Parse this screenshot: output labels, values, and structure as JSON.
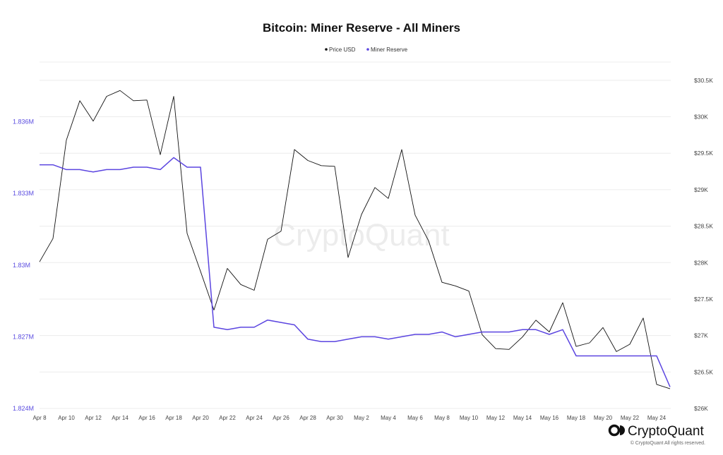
{
  "chart_data": {
    "type": "line",
    "title": "Bitcoin: Miner Reserve - All Miners",
    "legend": [
      "Price USD",
      "Miner Reserve"
    ],
    "x": [
      "Apr 8",
      "Apr 9",
      "Apr 10",
      "Apr 11",
      "Apr 12",
      "Apr 13",
      "Apr 14",
      "Apr 15",
      "Apr 16",
      "Apr 17",
      "Apr 18",
      "Apr 19",
      "Apr 20",
      "Apr 21",
      "Apr 22",
      "Apr 23",
      "Apr 24",
      "Apr 25",
      "Apr 26",
      "Apr 27",
      "Apr 28",
      "Apr 29",
      "Apr 30",
      "May 1",
      "May 2",
      "May 3",
      "May 4",
      "May 5",
      "May 6",
      "May 7",
      "May 8",
      "May 9",
      "May 10",
      "May 11",
      "May 12",
      "May 13",
      "May 14",
      "May 15",
      "May 16",
      "May 17",
      "May 18",
      "May 19",
      "May 20",
      "May 21",
      "May 22",
      "May 23",
      "May 24",
      "May 25"
    ],
    "x_tick_labels": [
      "Apr 8",
      "Apr 10",
      "Apr 12",
      "Apr 14",
      "Apr 16",
      "Apr 18",
      "Apr 20",
      "Apr 22",
      "Apr 24",
      "Apr 26",
      "Apr 28",
      "Apr 30",
      "May 2",
      "May 4",
      "May 6",
      "May 8",
      "May 10",
      "May 12",
      "May 14",
      "May 16",
      "May 18",
      "May 20",
      "May 22",
      "May 24"
    ],
    "y_left": {
      "range": [
        1.824,
        1.8385
      ],
      "tick_values": [
        1.824,
        1.827,
        1.83,
        1.833,
        1.836
      ],
      "tick_labels": [
        "1.824M",
        "1.827M",
        "1.83M",
        "1.833M",
        "1.836M"
      ]
    },
    "y_right": {
      "range": [
        26000,
        30750
      ],
      "tick_values": [
        26000,
        26500,
        27000,
        27500,
        28000,
        28500,
        29000,
        29500,
        30000,
        30500
      ],
      "tick_labels": [
        "$26K",
        "$26.5K",
        "$27K",
        "$27.5K",
        "$28K",
        "$28.5K",
        "$29K",
        "$29.5K",
        "$30K",
        "$30.5K"
      ]
    },
    "series": [
      {
        "name": "Price USD",
        "axis": "right",
        "color": "#111111",
        "values": [
          28010,
          28330,
          29680,
          30220,
          29940,
          30280,
          30360,
          30220,
          30230,
          29480,
          30280,
          28400,
          27880,
          27350,
          27920,
          27700,
          27620,
          28320,
          28430,
          29550,
          29400,
          29330,
          29320,
          28070,
          28660,
          29030,
          28880,
          29550,
          28650,
          28300,
          27730,
          27680,
          27610,
          27010,
          26820,
          26810,
          26980,
          27210,
          27050,
          27450,
          26850,
          26900,
          27110,
          26780,
          26880,
          27240,
          26330,
          26270
        ],
        "v_last": 26270
      },
      {
        "name": "Miner Reserve",
        "axis": "left",
        "color": "#5b45e0",
        "values": [
          1.8342,
          1.8342,
          1.834,
          1.834,
          1.8339,
          1.834,
          1.834,
          1.8341,
          1.8341,
          1.834,
          1.8345,
          1.8341,
          1.8341,
          1.8274,
          1.8273,
          1.8274,
          1.8274,
          1.8277,
          1.8276,
          1.8275,
          1.8269,
          1.8268,
          1.8268,
          1.8269,
          1.827,
          1.827,
          1.8269,
          1.827,
          1.8271,
          1.8271,
          1.8272,
          1.827,
          1.8271,
          1.8272,
          1.8272,
          1.8272,
          1.8273,
          1.8273,
          1.8271,
          1.8273,
          1.8262,
          1.8262,
          1.8262,
          1.8262,
          1.8262,
          1.8262,
          1.8262,
          1.8249
        ]
      }
    ],
    "grid": true,
    "legend_position": "top-center"
  },
  "watermark": "CryptoQuant",
  "brand": {
    "name": "CryptoQuant",
    "copyright": "© CryptoQuant All rights reserved."
  }
}
